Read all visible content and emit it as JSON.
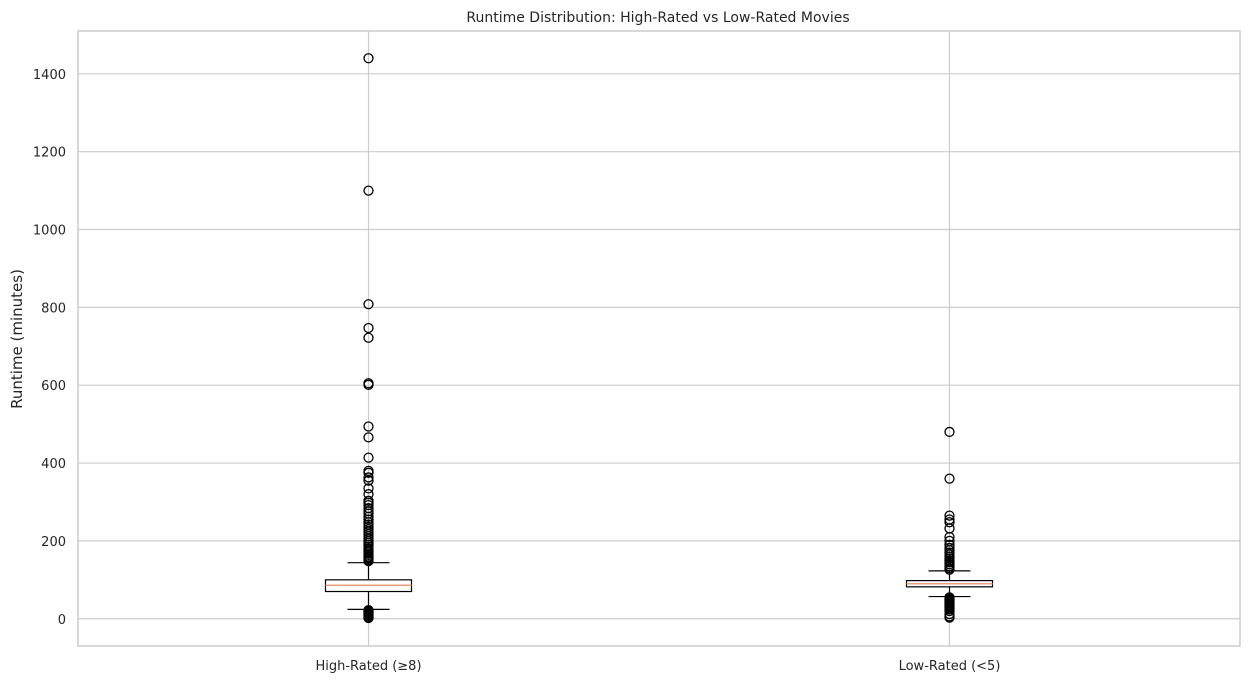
{
  "chart_data": {
    "type": "box",
    "title": "Runtime Distribution: High-Rated vs Low-Rated Movies",
    "xlabel": "",
    "ylabel": "Runtime (minutes)",
    "ylim": [
      -70,
      1510
    ],
    "yticks": [
      0,
      200,
      400,
      600,
      800,
      1000,
      1200,
      1400
    ],
    "grid": true,
    "categories": [
      "High-Rated (≥8)",
      "Low-Rated (<5)"
    ],
    "boxes": [
      {
        "category": "High-Rated (≥8)",
        "whisker_low": 24,
        "q1": 70,
        "median": 86,
        "q3": 100,
        "whisker_high": 144,
        "outliers": [
          1440,
          1100,
          808,
          747,
          722,
          605,
          601,
          494,
          466,
          414,
          380,
          375,
          363,
          355,
          335,
          320,
          303,
          298,
          292,
          284,
          276,
          270,
          262,
          255,
          248,
          242,
          236,
          230,
          224,
          218,
          212,
          206,
          200,
          195,
          190,
          185,
          180,
          176,
          172,
          168,
          164,
          160,
          157,
          154,
          151,
          148,
          22,
          20,
          18,
          16,
          14,
          12,
          10,
          8,
          6,
          4,
          2
        ]
      },
      {
        "category": "Low-Rated (<5)",
        "whisker_low": 57,
        "q1": 82,
        "median": 90,
        "q3": 98,
        "whisker_high": 123,
        "outliers": [
          480,
          360,
          265,
          255,
          248,
          232,
          210,
          200,
          190,
          182,
          176,
          170,
          165,
          160,
          155,
          150,
          145,
          140,
          135,
          130,
          126,
          55,
          52,
          49,
          46,
          43,
          40,
          37,
          34,
          31,
          28,
          24,
          20,
          12,
          6,
          3
        ]
      }
    ],
    "colors": {
      "grid": "#cccccc",
      "box_edge": "#000000",
      "box_fill": "#ffffff",
      "median": "#e8a07a",
      "outlier_edge": "#000000"
    }
  }
}
